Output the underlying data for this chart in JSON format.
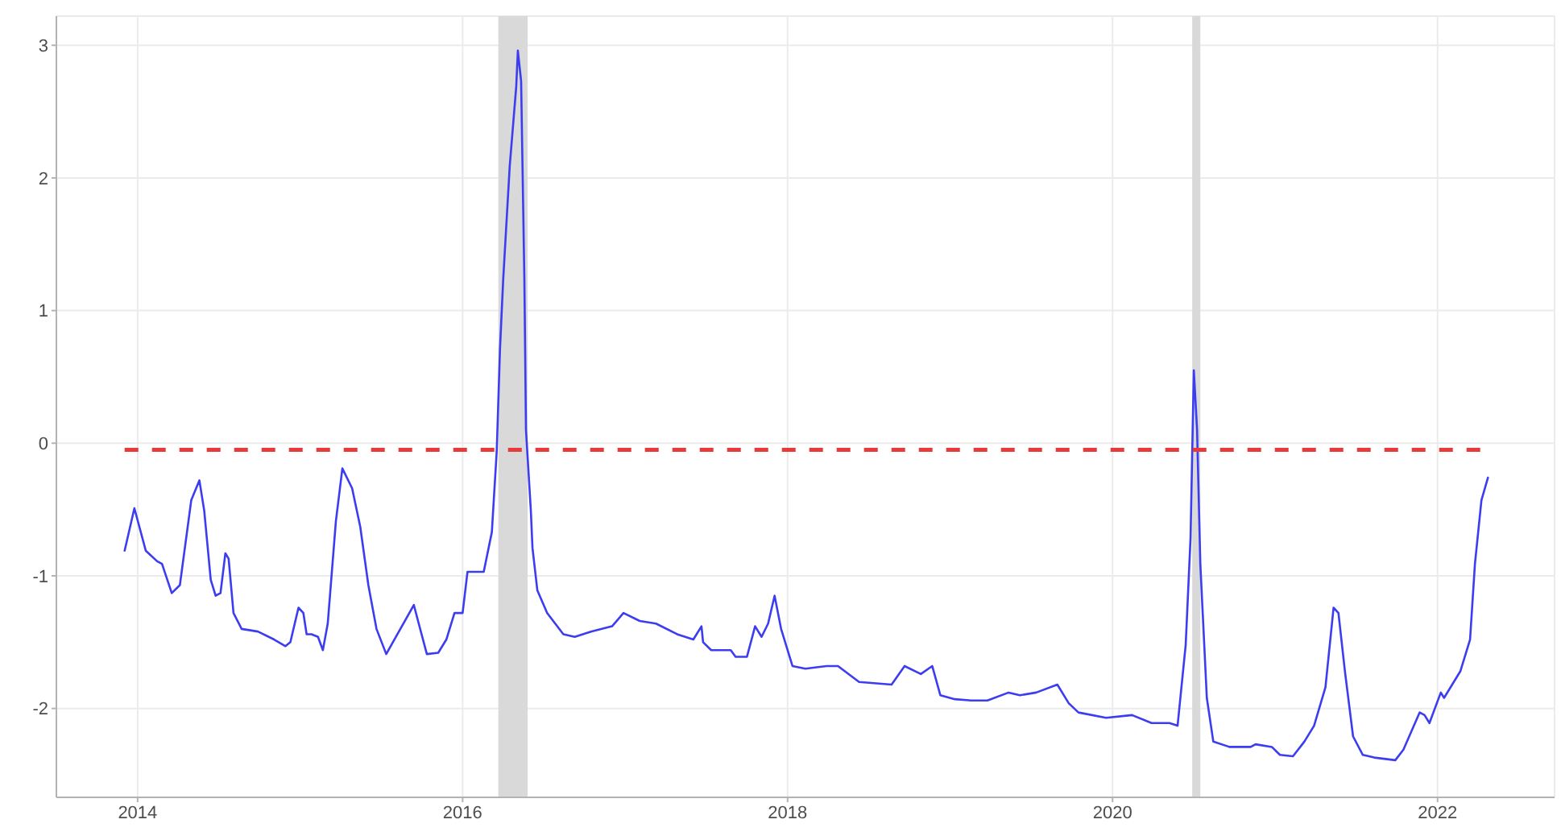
{
  "chart_data": {
    "type": "line",
    "x": [
      2013.92,
      2013.98,
      2014.05,
      2014.12,
      2014.15,
      2014.21,
      2014.26,
      2014.33,
      2014.38,
      2014.41,
      2014.45,
      2014.48,
      2014.51,
      2014.54,
      2014.56,
      2014.59,
      2014.64,
      2014.74,
      2014.84,
      2014.91,
      2014.94,
      2014.99,
      2015.02,
      2015.04,
      2015.07,
      2015.11,
      2015.14,
      2015.17,
      2015.22,
      2015.26,
      2015.32,
      2015.37,
      2015.42,
      2015.47,
      2015.53,
      2015.58,
      2015.7,
      2015.73,
      2015.78,
      2015.85,
      2015.9,
      2015.95,
      2016.0,
      2016.03,
      2016.13,
      2016.18,
      2016.21,
      2016.23,
      2016.25,
      2016.29,
      2016.33,
      2016.34,
      2016.36,
      2016.38,
      2016.39,
      2016.42,
      2016.43,
      2016.46,
      2016.52,
      2016.62,
      2016.69,
      2016.79,
      2016.92,
      2016.99,
      2017.09,
      2017.19,
      2017.32,
      2017.42,
      2017.47,
      2017.48,
      2017.53,
      2017.65,
      2017.68,
      2017.75,
      2017.8,
      2017.84,
      2017.88,
      2017.92,
      2017.96,
      2018.03,
      2018.11,
      2018.24,
      2018.31,
      2018.44,
      2018.64,
      2018.72,
      2018.82,
      2018.89,
      2018.94,
      2019.03,
      2019.13,
      2019.23,
      2019.36,
      2019.43,
      2019.53,
      2019.66,
      2019.73,
      2019.79,
      2019.96,
      2020.12,
      2020.24,
      2020.35,
      2020.4,
      2020.45,
      2020.48,
      2020.5,
      2020.52,
      2020.54,
      2020.58,
      2020.62,
      2020.72,
      2020.85,
      2020.88,
      2020.98,
      2021.03,
      2021.11,
      2021.18,
      2021.24,
      2021.31,
      2021.36,
      2021.39,
      2021.43,
      2021.48,
      2021.54,
      2021.61,
      2021.74,
      2021.79,
      2021.89,
      2021.92,
      2021.95,
      2022.02,
      2022.04,
      2022.14,
      2022.2,
      2022.23,
      2022.27,
      2022.31
    ],
    "series": [
      {
        "color": "#3c3cf0",
        "values": [
          -0.81,
          -0.49,
          -0.81,
          -0.89,
          -0.91,
          -1.13,
          -1.07,
          -0.43,
          -0.28,
          -0.51,
          -1.03,
          -1.15,
          -1.13,
          -0.83,
          -0.87,
          -1.28,
          -1.4,
          -1.42,
          -1.48,
          -1.53,
          -1.5,
          -1.24,
          -1.28,
          -1.44,
          -1.44,
          -1.46,
          -1.56,
          -1.36,
          -0.59,
          -0.19,
          -0.34,
          -0.63,
          -1.07,
          -1.4,
          -1.59,
          -1.48,
          -1.22,
          -1.36,
          -1.59,
          -1.58,
          -1.48,
          -1.28,
          -1.28,
          -0.97,
          -0.97,
          -0.67,
          -0.06,
          0.71,
          1.24,
          2.09,
          2.69,
          2.96,
          2.73,
          1.24,
          0.1,
          -0.51,
          -0.79,
          -1.11,
          -1.28,
          -1.44,
          -1.46,
          -1.42,
          -1.38,
          -1.28,
          -1.34,
          -1.36,
          -1.44,
          -1.48,
          -1.38,
          -1.5,
          -1.56,
          -1.56,
          -1.61,
          -1.61,
          -1.38,
          -1.46,
          -1.36,
          -1.15,
          -1.4,
          -1.68,
          -1.7,
          -1.68,
          -1.68,
          -1.8,
          -1.82,
          -1.68,
          -1.74,
          -1.68,
          -1.9,
          -1.93,
          -1.94,
          -1.94,
          -1.88,
          -1.9,
          -1.88,
          -1.82,
          -1.96,
          -2.03,
          -2.07,
          -2.05,
          -2.11,
          -2.11,
          -2.13,
          -1.52,
          -0.71,
          0.55,
          0.1,
          -0.91,
          -1.92,
          -2.25,
          -2.29,
          -2.29,
          -2.27,
          -2.29,
          -2.35,
          -2.36,
          -2.25,
          -2.13,
          -1.84,
          -1.24,
          -1.28,
          -1.72,
          -2.21,
          -2.35,
          -2.37,
          -2.39,
          -2.31,
          -2.03,
          -2.05,
          -2.11,
          -1.88,
          -1.92,
          -1.72,
          -1.48,
          -0.91,
          -0.43,
          -0.26
        ]
      }
    ],
    "xlim": [
      2013.5,
      2022.72
    ],
    "xticks": [
      2014,
      2016,
      2018,
      2020,
      2022
    ],
    "ylim": [
      -2.67,
      3.22
    ],
    "yticks": [
      -2,
      -1,
      0,
      1,
      2,
      3
    ],
    "grid": true,
    "line_style": "solid",
    "ref_lines": [
      {
        "axis": "y",
        "value": -0.05,
        "color": "#e83a3a",
        "line_style": "dashed"
      }
    ],
    "bands": [
      {
        "axis": "x",
        "from": 2016.22,
        "to": 2016.4,
        "color": "#d9d9d9"
      },
      {
        "axis": "x",
        "from": 2020.49,
        "to": 2020.54,
        "color": "#d9d9d9"
      }
    ]
  }
}
